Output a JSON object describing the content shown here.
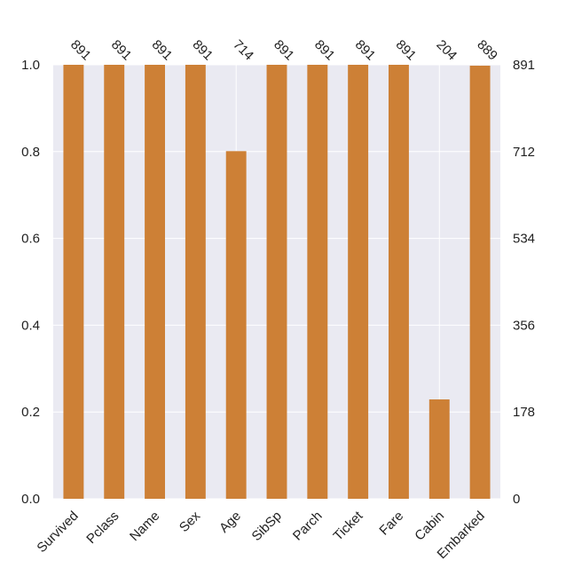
{
  "chart_data": {
    "type": "bar",
    "categories": [
      "Survived",
      "Pclass",
      "Name",
      "Sex",
      "Age",
      "SibSp",
      "Parch",
      "Ticket",
      "Fare",
      "Cabin",
      "Embarked"
    ],
    "values": [
      1.0,
      1.0,
      1.0,
      1.0,
      0.801,
      1.0,
      1.0,
      1.0,
      1.0,
      0.229,
      0.998
    ],
    "counts": [
      "891",
      "891",
      "891",
      "891",
      "714",
      "891",
      "891",
      "891",
      "891",
      "204",
      "889"
    ],
    "ylim": [
      0,
      1.0
    ],
    "yticks": [
      "0.0",
      "0.2",
      "0.4",
      "0.6",
      "0.8",
      "1.0"
    ],
    "y2ticks": [
      "0",
      "178",
      "356",
      "534",
      "712",
      "891"
    ],
    "grid": true,
    "colors": {
      "bar": "#cd8036",
      "plot_background": "#eaeaf2",
      "grid": "#ffffff"
    }
  }
}
